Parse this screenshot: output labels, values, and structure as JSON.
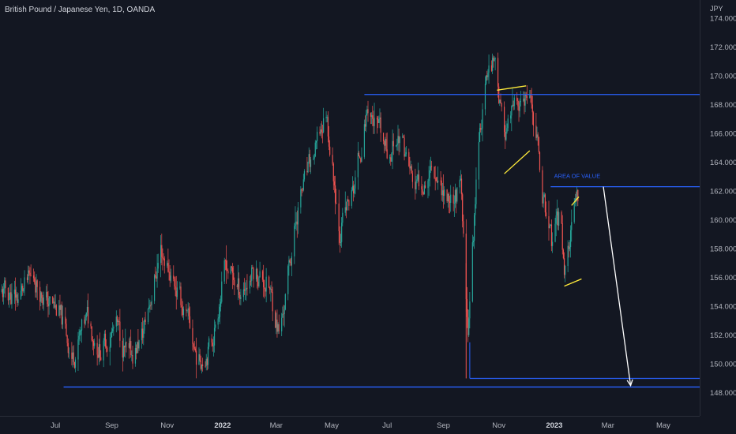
{
  "header": {
    "title": "British Pound / Japanese Yen, 1D, OANDA",
    "currency": "JPY"
  },
  "colors": {
    "background": "#131722",
    "up": "#26a69a",
    "down": "#ef5350",
    "level_line": "#2962ff",
    "pattern": "#ffeb3b",
    "projection": "#ffffff",
    "axis_text": "#b2b5be"
  },
  "chart_data": {
    "type": "candlestick",
    "title": "British Pound / Japanese Yen, 1D, OANDA",
    "currency": "JPY",
    "ylim": [
      147.0,
      174.0
    ],
    "y_ticks": [
      "148.000",
      "150.000",
      "152.000",
      "154.000",
      "156.000",
      "158.000",
      "160.000",
      "162.000",
      "164.000",
      "166.000",
      "168.000",
      "170.000",
      "172.000",
      "174.000"
    ],
    "x_ticks": [
      "May",
      "Jul",
      "Sep",
      "Nov",
      "2022",
      "Mar",
      "May",
      "Jul",
      "Sep",
      "Nov",
      "2023",
      "Mar",
      "May"
    ],
    "bold_ticks": [
      "2022",
      "2023"
    ],
    "x_start": "2021-05-01",
    "x_end": "2023-06-10",
    "grid": false,
    "price_path": [
      [
        "2021-05-01",
        155.0
      ],
      [
        "2021-05-20",
        154.6
      ],
      [
        "2021-06-08",
        156.0
      ],
      [
        "2021-06-20",
        154.5
      ],
      [
        "2021-07-05",
        153.5
      ],
      [
        "2021-07-20",
        150.5
      ],
      [
        "2021-08-05",
        153.0
      ],
      [
        "2021-08-20",
        151.0
      ],
      [
        "2021-09-05",
        152.6
      ],
      [
        "2021-09-20",
        150.2
      ],
      [
        "2021-10-05",
        152.0
      ],
      [
        "2021-10-25",
        158.0
      ],
      [
        "2021-11-10",
        155.5
      ],
      [
        "2021-11-25",
        152.5
      ],
      [
        "2021-12-05",
        150.2
      ],
      [
        "2021-12-20",
        151.5
      ],
      [
        "2022-01-05",
        157.0
      ],
      [
        "2022-01-20",
        155.0
      ],
      [
        "2022-02-05",
        156.5
      ],
      [
        "2022-02-20",
        155.5
      ],
      [
        "2022-03-05",
        152.0
      ],
      [
        "2022-03-25",
        161.0
      ],
      [
        "2022-04-15",
        165.0
      ],
      [
        "2022-04-25",
        167.5
      ],
      [
        "2022-05-10",
        159.5
      ],
      [
        "2022-05-25",
        162.0
      ],
      [
        "2022-06-10",
        168.0
      ],
      [
        "2022-06-30",
        164.5
      ],
      [
        "2022-07-15",
        166.0
      ],
      [
        "2022-08-01",
        162.0
      ],
      [
        "2022-08-20",
        164.0
      ],
      [
        "2022-09-05",
        161.5
      ],
      [
        "2022-09-20",
        162.0
      ],
      [
        "2022-09-28",
        152.0
      ],
      [
        "2022-10-10",
        166.0
      ],
      [
        "2022-10-21",
        170.5
      ],
      [
        "2022-10-28",
        171.7
      ],
      [
        "2022-11-05",
        166.0
      ],
      [
        "2022-11-20",
        167.5
      ],
      [
        "2022-12-01",
        168.0
      ],
      [
        "2022-12-10",
        167.0
      ],
      [
        "2022-12-20",
        161.5
      ],
      [
        "2022-12-30",
        158.0
      ],
      [
        "2023-01-08",
        160.5
      ],
      [
        "2023-01-12",
        156.5
      ],
      [
        "2023-01-22",
        160.0
      ],
      [
        "2023-01-28",
        161.6
      ]
    ],
    "horizontal_levels": [
      {
        "from": "2022-06-06",
        "to": "2023-06-10",
        "price": 168.7
      },
      {
        "from": "2022-12-28",
        "to": "2023-06-10",
        "price": 162.3
      },
      {
        "from": "2022-09-30",
        "to": "2023-06-10",
        "price": 149.0
      },
      {
        "from": "2021-07-10",
        "to": "2023-06-10",
        "price": 148.4
      }
    ],
    "annotations": [
      {
        "text": "AREA OF VALUE",
        "date": "2022-12-30",
        "price": 162.8
      }
    ],
    "patterns": [
      {
        "points": [
          [
            "2022-10-30",
            169.0
          ],
          [
            "2022-12-01",
            169.3
          ]
        ]
      },
      {
        "points": [
          [
            "2022-11-07",
            163.2
          ],
          [
            "2022-12-05",
            164.8
          ]
        ]
      },
      {
        "points": [
          [
            "2023-01-20",
            161.0
          ],
          [
            "2023-01-28",
            161.6
          ]
        ]
      },
      {
        "points": [
          [
            "2023-01-12",
            155.4
          ],
          [
            "2023-01-31",
            155.9
          ]
        ]
      }
    ],
    "projection_arrow": {
      "from": [
        "2023-02-24",
        162.3
      ],
      "to": [
        "2023-03-26",
        148.5
      ]
    }
  }
}
